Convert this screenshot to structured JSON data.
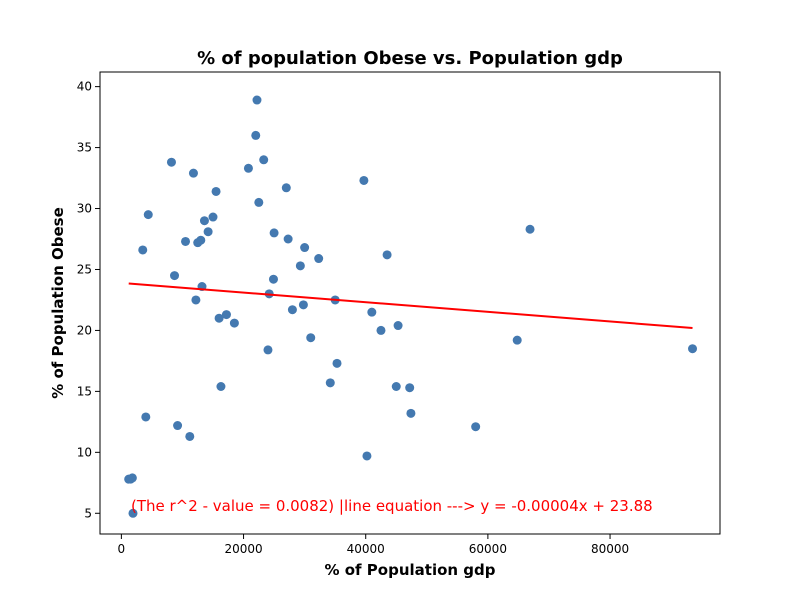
{
  "chart_data": {
    "type": "scatter",
    "title": "% of population Obese vs. Population gdp",
    "xlabel": "% of Population gdp",
    "ylabel": "% of Population Obese",
    "xlim": [
      -3500,
      98000
    ],
    "ylim": [
      3.3,
      41.2
    ],
    "xticks": [
      0,
      20000,
      40000,
      60000,
      80000
    ],
    "yticks": [
      5,
      10,
      15,
      20,
      25,
      30,
      35,
      40
    ],
    "grid": false,
    "point_color": "#4479b0",
    "line_color": "#ff0000",
    "annotation": "(The r^2 - value = 0.0082) |line equation ---> y = -0.00004x + 23.88",
    "annotation_color": "#ff0000",
    "regression": {
      "slope": -4e-05,
      "intercept": 23.88,
      "x_start": 1200,
      "x_end": 93500,
      "y_start": 23.85,
      "y_end": 20.2
    },
    "points": [
      [
        1200,
        7.8
      ],
      [
        1500,
        7.8
      ],
      [
        1800,
        7.9
      ],
      [
        1900,
        5.0
      ],
      [
        3500,
        26.6
      ],
      [
        4000,
        12.9
      ],
      [
        4400,
        29.5
      ],
      [
        8200,
        33.8
      ],
      [
        8700,
        24.5
      ],
      [
        9200,
        12.2
      ],
      [
        10500,
        27.3
      ],
      [
        11200,
        11.3
      ],
      [
        11800,
        32.9
      ],
      [
        12200,
        22.5
      ],
      [
        12500,
        27.2
      ],
      [
        13000,
        27.4
      ],
      [
        13200,
        23.6
      ],
      [
        13600,
        29.0
      ],
      [
        14200,
        28.1
      ],
      [
        15000,
        29.3
      ],
      [
        15500,
        31.4
      ],
      [
        16000,
        21.0
      ],
      [
        16300,
        15.4
      ],
      [
        17200,
        21.3
      ],
      [
        18500,
        20.6
      ],
      [
        20800,
        33.3
      ],
      [
        22000,
        36.0
      ],
      [
        22200,
        38.9
      ],
      [
        22500,
        30.5
      ],
      [
        23300,
        34.0
      ],
      [
        24000,
        18.4
      ],
      [
        24200,
        23.0
      ],
      [
        24900,
        24.2
      ],
      [
        25000,
        28.0
      ],
      [
        27000,
        31.7
      ],
      [
        27300,
        27.5
      ],
      [
        28000,
        21.7
      ],
      [
        29300,
        25.3
      ],
      [
        29800,
        22.1
      ],
      [
        30000,
        26.8
      ],
      [
        31000,
        19.4
      ],
      [
        32300,
        25.9
      ],
      [
        34200,
        15.7
      ],
      [
        35000,
        22.5
      ],
      [
        35300,
        17.3
      ],
      [
        39700,
        32.3
      ],
      [
        40200,
        9.7
      ],
      [
        41000,
        21.5
      ],
      [
        42500,
        20.0
      ],
      [
        43500,
        26.2
      ],
      [
        45000,
        15.4
      ],
      [
        45300,
        20.4
      ],
      [
        47200,
        15.3
      ],
      [
        47400,
        13.2
      ],
      [
        58000,
        12.1
      ],
      [
        64800,
        19.2
      ],
      [
        66900,
        28.3
      ],
      [
        93500,
        18.5
      ]
    ]
  }
}
